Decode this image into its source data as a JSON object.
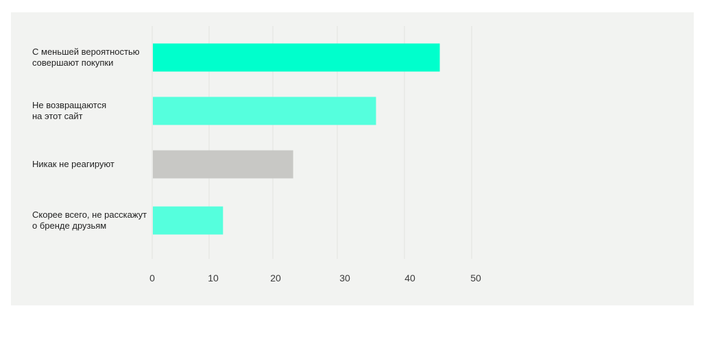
{
  "chart_data": {
    "type": "bar",
    "orientation": "horizontal",
    "categories": [
      "С меньшей вероятностью\nсовершают покупки",
      "Не возвращаются\nна этот сайт",
      "Никак не реагируют",
      "Скорее всего, не расскажут\nо бренде друзьям"
    ],
    "values": [
      45,
      35,
      22,
      11
    ],
    "bar_colors": [
      "#00ffcc",
      "#55ffdd",
      "#c8c8c5",
      "#55ffdd"
    ],
    "xlim": [
      0,
      50
    ],
    "xticks": [
      "0",
      "10",
      "20",
      "30",
      "40",
      "50"
    ],
    "grid": true,
    "title": "",
    "xlabel": "",
    "ylabel": ""
  }
}
